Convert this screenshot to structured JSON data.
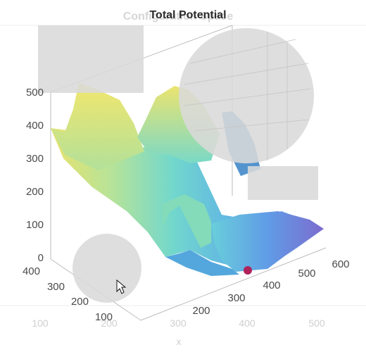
{
  "background_title": "Configuration Space",
  "background_x_ticks": [
    "100",
    "200",
    "300",
    "400",
    "500"
  ],
  "background_x_label": "x",
  "chart_data": {
    "type": "surface",
    "title": "Total Potential",
    "z_ticks": [
      "0",
      "100",
      "200",
      "300",
      "400",
      "500"
    ],
    "y_ticks": [
      "100",
      "200",
      "300",
      "400"
    ],
    "x_ticks": [
      "200",
      "300",
      "400",
      "500",
      "600"
    ],
    "xlim": [
      150,
      650
    ],
    "ylim": [
      50,
      450
    ],
    "zlim": [
      0,
      500
    ],
    "colormap": "parula",
    "marker": {
      "x": 430,
      "y": 90,
      "z": 5,
      "color": "#b0235a"
    }
  },
  "colors": {
    "obstacle": "#d9d9d9",
    "marker": "#b0235a"
  }
}
